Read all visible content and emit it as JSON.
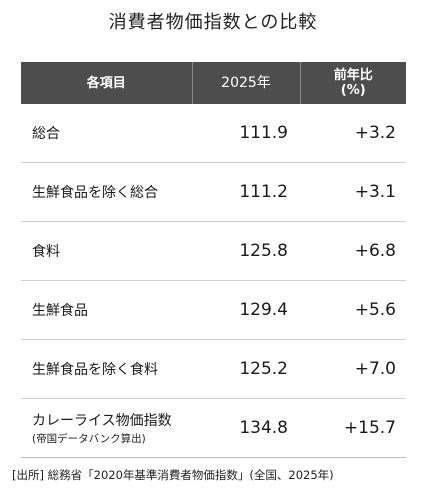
{
  "title": "消費者物価指数との比較",
  "table": {
    "headers": {
      "item": "各項目",
      "year": "2025年",
      "change_line1": "前年比",
      "change_line2": "(%)"
    },
    "rows": [
      {
        "label": "総合",
        "sublabel": "",
        "value": "111.9",
        "change": "+3.2"
      },
      {
        "label": "生鮮食品を除く総合",
        "sublabel": "",
        "value": "111.2",
        "change": "+3.1"
      },
      {
        "label": "食料",
        "sublabel": "",
        "value": "125.8",
        "change": "+6.8"
      },
      {
        "label": "生鮮食品",
        "sublabel": "",
        "value": "129.4",
        "change": "+5.6"
      },
      {
        "label": "生鮮食品を除く食料",
        "sublabel": "",
        "value": "125.2",
        "change": "+7.0"
      },
      {
        "label": "カレーライス物価指数",
        "sublabel": "(帝国データバンク算出)",
        "value": "134.8",
        "change": "+15.7"
      }
    ]
  },
  "source": "[出所] 総務省「2020年基準消費者物価指数」(全国、2025年)"
}
